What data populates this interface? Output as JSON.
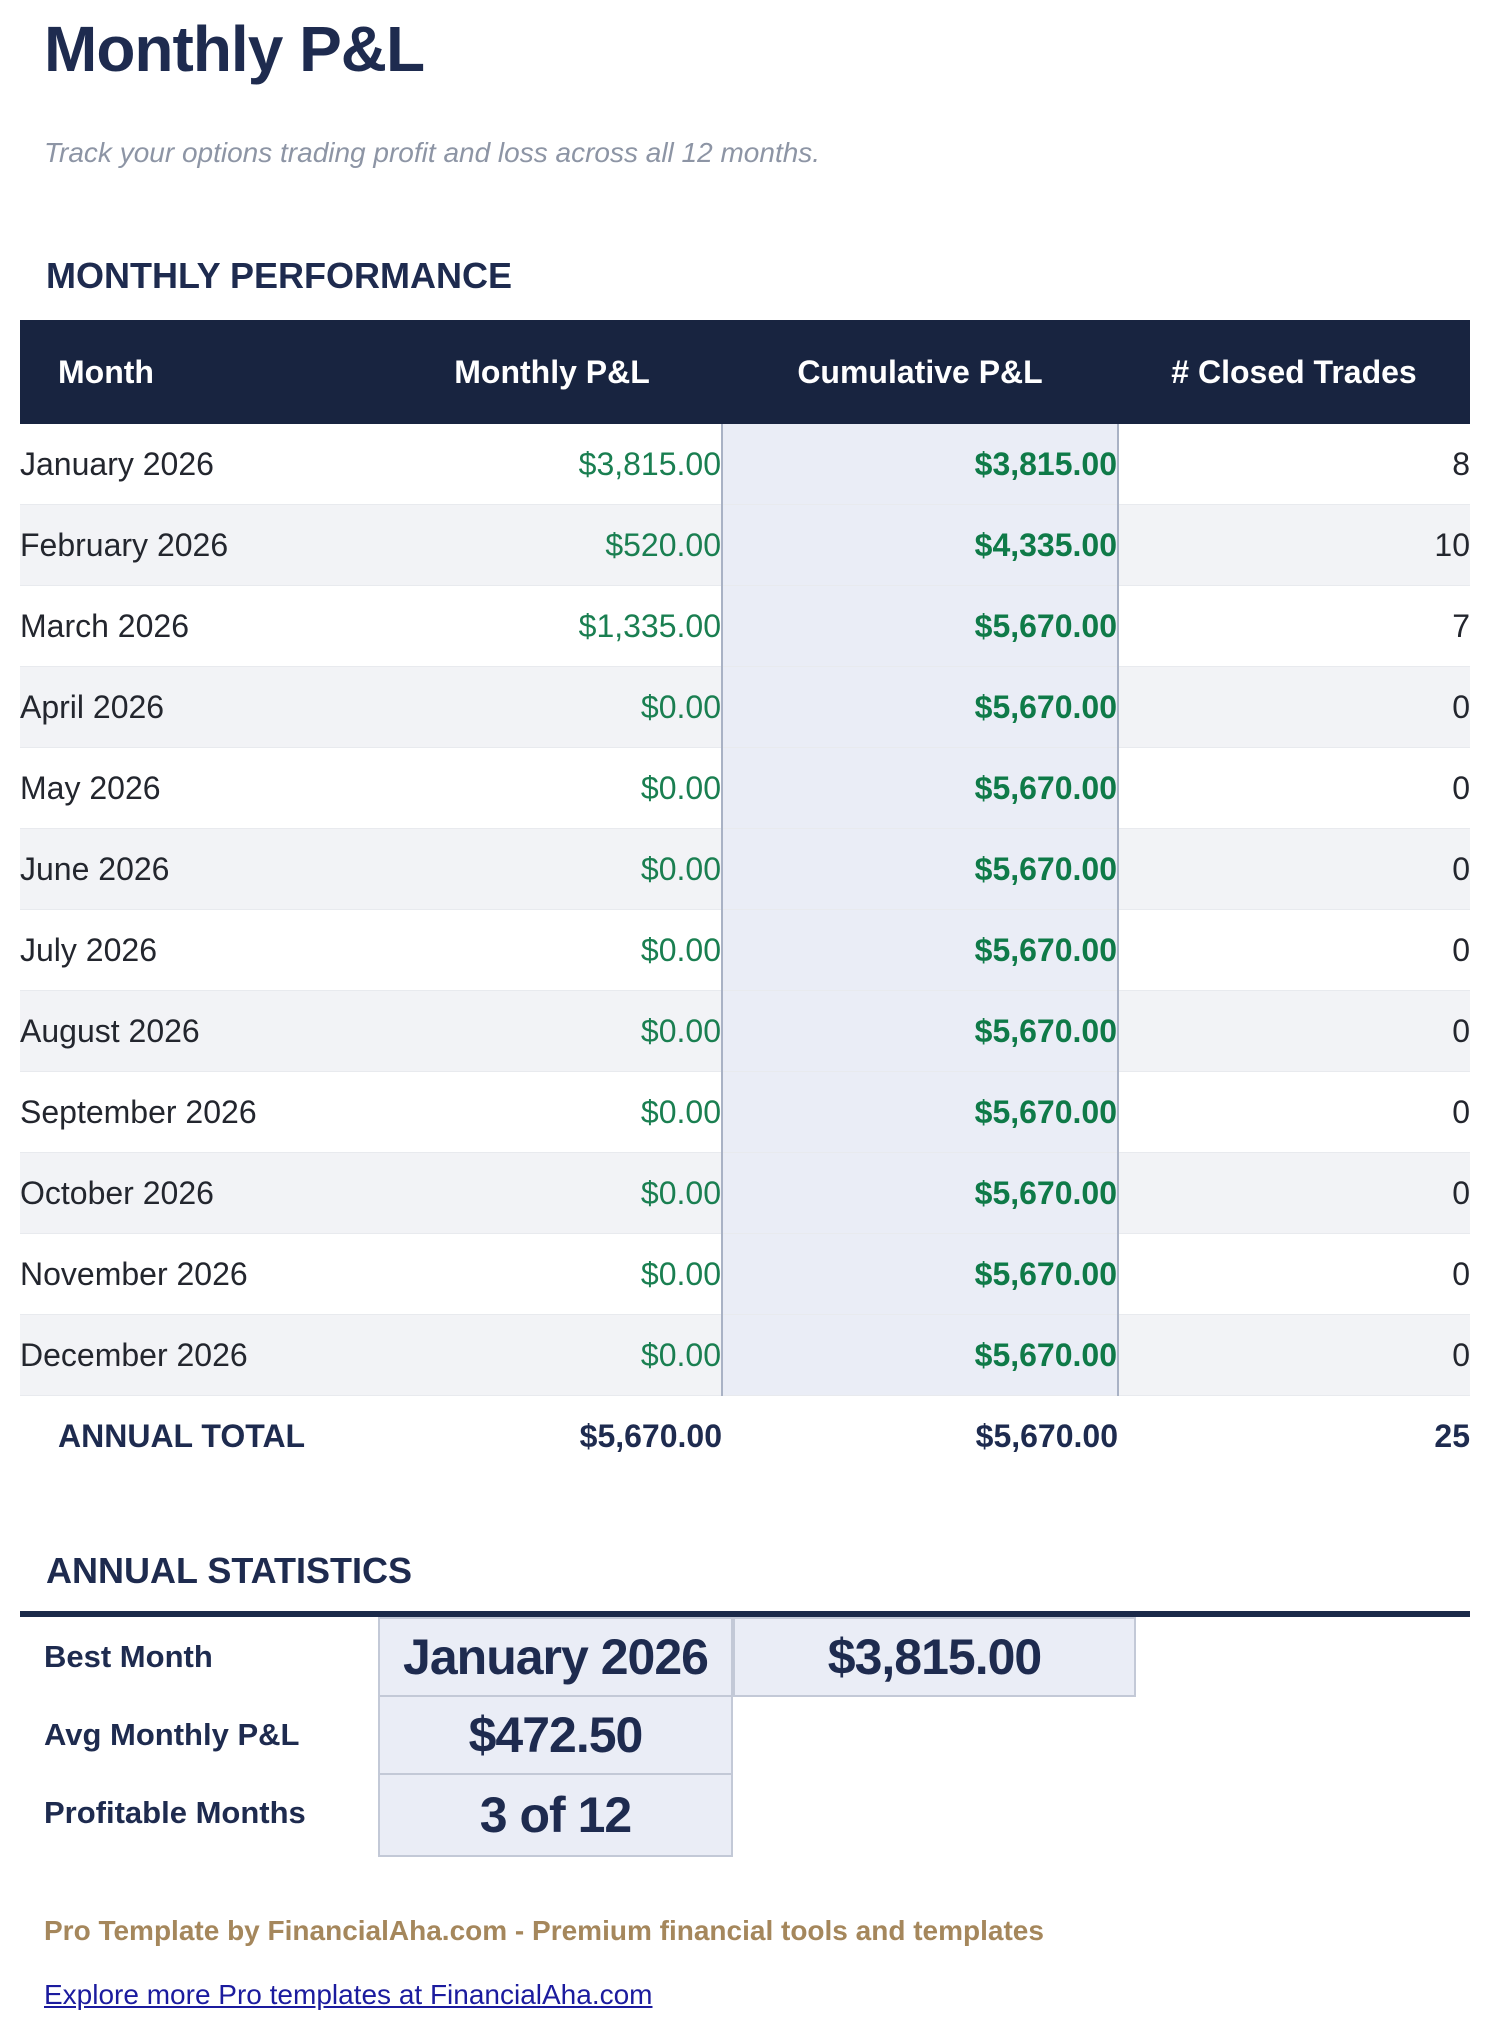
{
  "page": {
    "title": "Monthly P&L",
    "subtitle": "Track your options trading profit and loss across all 12 months.",
    "section_performance": "MONTHLY PERFORMANCE",
    "section_statistics": "ANNUAL STATISTICS",
    "footer_brand": "Pro Template by FinancialAha.com - Premium financial tools and templates",
    "footer_link": "Explore more Pro templates at FinancialAha.com"
  },
  "table": {
    "columns": [
      "Month",
      "Monthly P&L",
      "Cumulative P&L",
      "# Closed Trades"
    ],
    "rows": [
      {
        "month": "January 2026",
        "monthly_pl": "$3,815.00",
        "cumulative_pl": "$3,815.00",
        "closed_trades": "8"
      },
      {
        "month": "February 2026",
        "monthly_pl": "$520.00",
        "cumulative_pl": "$4,335.00",
        "closed_trades": "10"
      },
      {
        "month": "March 2026",
        "monthly_pl": "$1,335.00",
        "cumulative_pl": "$5,670.00",
        "closed_trades": "7"
      },
      {
        "month": "April 2026",
        "monthly_pl": "$0.00",
        "cumulative_pl": "$5,670.00",
        "closed_trades": "0"
      },
      {
        "month": "May 2026",
        "monthly_pl": "$0.00",
        "cumulative_pl": "$5,670.00",
        "closed_trades": "0"
      },
      {
        "month": "June 2026",
        "monthly_pl": "$0.00",
        "cumulative_pl": "$5,670.00",
        "closed_trades": "0"
      },
      {
        "month": "July 2026",
        "monthly_pl": "$0.00",
        "cumulative_pl": "$5,670.00",
        "closed_trades": "0"
      },
      {
        "month": "August 2026",
        "monthly_pl": "$0.00",
        "cumulative_pl": "$5,670.00",
        "closed_trades": "0"
      },
      {
        "month": "September 2026",
        "monthly_pl": "$0.00",
        "cumulative_pl": "$5,670.00",
        "closed_trades": "0"
      },
      {
        "month": "October 2026",
        "monthly_pl": "$0.00",
        "cumulative_pl": "$5,670.00",
        "closed_trades": "0"
      },
      {
        "month": "November 2026",
        "monthly_pl": "$0.00",
        "cumulative_pl": "$5,670.00",
        "closed_trades": "0"
      },
      {
        "month": "December 2026",
        "monthly_pl": "$0.00",
        "cumulative_pl": "$5,670.00",
        "closed_trades": "0"
      }
    ],
    "total": {
      "label": "ANNUAL TOTAL",
      "monthly_pl": "$5,670.00",
      "cumulative_pl": "$5,670.00",
      "closed_trades": "25"
    }
  },
  "statistics": {
    "rows": [
      {
        "label": "Best Month",
        "value": "January 2026",
        "value2": "$3,815.00"
      },
      {
        "label": "Avg Monthly P&L",
        "value": "$472.50"
      },
      {
        "label": "Profitable Months",
        "value": "3 of 12"
      }
    ]
  },
  "colors": {
    "navy_text": "#1e2b4f",
    "header_bg": "#182440",
    "green_monthly": "#1a7f51",
    "green_cumulative": "#0f7a48",
    "row_stripe": "#f2f3f6",
    "highlight_cell_bg": "#eaedf6",
    "highlight_cell_border": "#a9b2c5",
    "brand_tan": "#a5875c",
    "link_blue": "#1b1b9e"
  }
}
